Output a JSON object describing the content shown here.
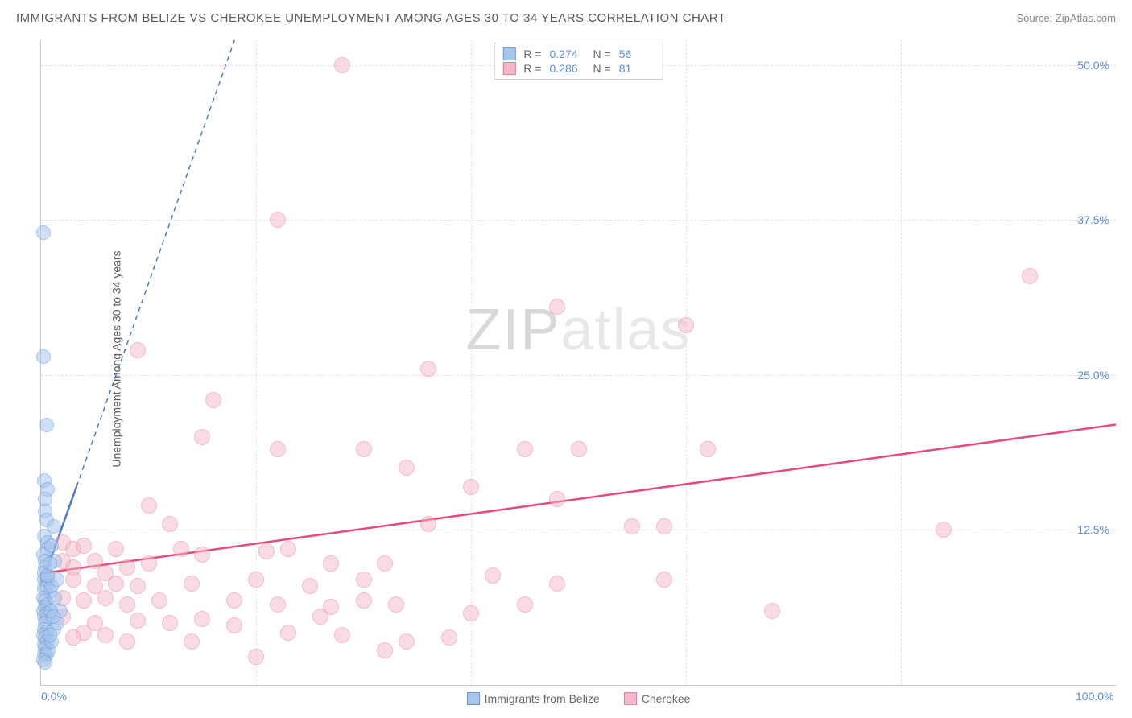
{
  "header": {
    "title": "IMMIGRANTS FROM BELIZE VS CHEROKEE UNEMPLOYMENT AMONG AGES 30 TO 34 YEARS CORRELATION CHART",
    "source_prefix": "Source: ",
    "source_name": "ZipAtlas.com"
  },
  "axes": {
    "y_label": "Unemployment Among Ages 30 to 34 years",
    "xlim": [
      0,
      100
    ],
    "ylim": [
      0,
      52
    ],
    "xticks": [
      {
        "val": 0,
        "label": "0.0%"
      },
      {
        "val": 100,
        "label": "100.0%"
      }
    ],
    "yticks": [
      {
        "val": 12.5,
        "label": "12.5%"
      },
      {
        "val": 25.0,
        "label": "25.0%"
      },
      {
        "val": 37.5,
        "label": "37.5%"
      },
      {
        "val": 50.0,
        "label": "50.0%"
      }
    ],
    "vgridlines": [
      20,
      40,
      60,
      80
    ],
    "tick_color": "#5b8dd6",
    "grid_color": "#e5e5e5",
    "label_color": "#5a5a5a",
    "label_fontsize": 14
  },
  "watermark": {
    "part1": "ZIP",
    "part2": "atlas"
  },
  "series": {
    "blue": {
      "name": "Immigrants from Belize",
      "fill": "#a8c5ed",
      "stroke": "#6a9bd8",
      "fill_opacity": 0.55,
      "marker_radius": 9,
      "R_label": "R =",
      "R": "0.274",
      "N_label": "N =",
      "N": "56",
      "trend_solid": {
        "x1": 0,
        "y1": 8.0,
        "x2": 3.3,
        "y2": 16.0
      },
      "trend_dashed": {
        "x1": 3.3,
        "y1": 16.0,
        "x2": 18,
        "y2": 52
      },
      "line_color": "#4a7bc8",
      "line_width": 2.5,
      "points": [
        [
          0.2,
          36.5
        ],
        [
          0.2,
          26.5
        ],
        [
          0.5,
          21.0
        ],
        [
          0.3,
          16.5
        ],
        [
          0.6,
          15.8
        ],
        [
          0.4,
          15.0
        ],
        [
          0.4,
          14.0
        ],
        [
          0.5,
          13.3
        ],
        [
          1.2,
          12.8
        ],
        [
          0.3,
          12.0
        ],
        [
          0.6,
          11.5
        ],
        [
          0.6,
          11.0
        ],
        [
          0.2,
          10.5
        ],
        [
          0.4,
          10.0
        ],
        [
          0.4,
          9.5
        ],
        [
          1.0,
          11.2
        ],
        [
          1.3,
          10.0
        ],
        [
          0.3,
          9.0
        ],
        [
          0.3,
          8.5
        ],
        [
          0.6,
          8.5
        ],
        [
          0.5,
          8.0
        ],
        [
          0.3,
          7.8
        ],
        [
          0.8,
          7.5
        ],
        [
          0.2,
          7.0
        ],
        [
          0.4,
          6.8
        ],
        [
          0.4,
          6.3
        ],
        [
          0.6,
          6.5
        ],
        [
          0.2,
          6.0
        ],
        [
          0.5,
          5.8
        ],
        [
          0.3,
          5.5
        ],
        [
          0.7,
          5.5
        ],
        [
          0.4,
          5.0
        ],
        [
          0.3,
          4.5
        ],
        [
          0.5,
          4.3
        ],
        [
          0.2,
          4.0
        ],
        [
          0.4,
          3.8
        ],
        [
          0.3,
          3.3
        ],
        [
          0.6,
          3.5
        ],
        [
          0.4,
          3.0
        ],
        [
          0.3,
          2.5
        ],
        [
          0.5,
          2.5
        ],
        [
          0.7,
          2.8
        ],
        [
          0.2,
          2.0
        ],
        [
          0.4,
          1.8
        ],
        [
          1.0,
          3.5
        ],
        [
          1.2,
          4.5
        ],
        [
          1.5,
          5.0
        ],
        [
          1.8,
          6.0
        ],
        [
          1.0,
          8.0
        ],
        [
          1.5,
          8.5
        ],
        [
          1.3,
          7.0
        ],
        [
          0.9,
          6.0
        ],
        [
          1.1,
          5.5
        ],
        [
          0.8,
          4.0
        ],
        [
          0.6,
          8.8
        ],
        [
          0.8,
          9.8
        ]
      ]
    },
    "pink": {
      "name": "Cherokee",
      "fill": "#f5b8c8",
      "stroke": "#e87a9a",
      "fill_opacity": 0.5,
      "marker_radius": 10,
      "R_label": "R =",
      "R": "0.286",
      "N_label": "N =",
      "N": "81",
      "trend_solid": {
        "x1": 0,
        "y1": 9.0,
        "x2": 100,
        "y2": 21.0
      },
      "line_color": "#e84a7a",
      "line_width": 2.5,
      "points": [
        [
          28,
          50
        ],
        [
          22,
          37.5
        ],
        [
          92,
          33
        ],
        [
          48,
          30.5
        ],
        [
          60,
          29
        ],
        [
          9,
          27
        ],
        [
          36,
          25.5
        ],
        [
          16,
          23
        ],
        [
          15,
          20
        ],
        [
          22,
          19
        ],
        [
          30,
          19
        ],
        [
          45,
          19
        ],
        [
          50,
          19
        ],
        [
          62,
          19
        ],
        [
          34,
          17.5
        ],
        [
          40,
          16
        ],
        [
          48,
          15
        ],
        [
          36,
          13
        ],
        [
          10,
          14.5
        ],
        [
          12,
          13
        ],
        [
          55,
          12.8
        ],
        [
          58,
          12.8
        ],
        [
          84,
          12.5
        ],
        [
          2,
          11.5
        ],
        [
          3,
          11
        ],
        [
          4,
          11.2
        ],
        [
          7,
          11
        ],
        [
          13,
          11
        ],
        [
          15,
          10.5
        ],
        [
          21,
          10.8
        ],
        [
          23,
          11
        ],
        [
          2,
          10
        ],
        [
          3,
          9.5
        ],
        [
          5,
          10
        ],
        [
          6,
          9
        ],
        [
          8,
          9.5
        ],
        [
          10,
          9.8
        ],
        [
          27,
          9.8
        ],
        [
          32,
          9.8
        ],
        [
          3,
          8.5
        ],
        [
          5,
          8
        ],
        [
          7,
          8.2
        ],
        [
          9,
          8
        ],
        [
          14,
          8.2
        ],
        [
          20,
          8.5
        ],
        [
          25,
          8
        ],
        [
          30,
          8.5
        ],
        [
          42,
          8.8
        ],
        [
          48,
          8.2
        ],
        [
          58,
          8.5
        ],
        [
          2,
          7
        ],
        [
          4,
          6.8
        ],
        [
          6,
          7
        ],
        [
          8,
          6.5
        ],
        [
          11,
          6.8
        ],
        [
          18,
          6.8
        ],
        [
          22,
          6.5
        ],
        [
          27,
          6.3
        ],
        [
          30,
          6.8
        ],
        [
          33,
          6.5
        ],
        [
          45,
          6.5
        ],
        [
          68,
          6
        ],
        [
          2,
          5.5
        ],
        [
          5,
          5
        ],
        [
          9,
          5.2
        ],
        [
          12,
          5
        ],
        [
          15,
          5.3
        ],
        [
          18,
          4.8
        ],
        [
          23,
          4.2
        ],
        [
          28,
          4
        ],
        [
          34,
          3.5
        ],
        [
          38,
          3.8
        ],
        [
          20,
          2.3
        ],
        [
          32,
          2.8
        ],
        [
          8,
          3.5
        ],
        [
          6,
          4
        ],
        [
          4,
          4.2
        ],
        [
          3,
          3.8
        ],
        [
          14,
          3.5
        ],
        [
          26,
          5.5
        ],
        [
          40,
          5.8
        ]
      ]
    }
  },
  "colors": {
    "background": "#ffffff",
    "title_color": "#5a5a5a",
    "source_color": "#888888",
    "stat_val_color": "#5b8dd6"
  }
}
